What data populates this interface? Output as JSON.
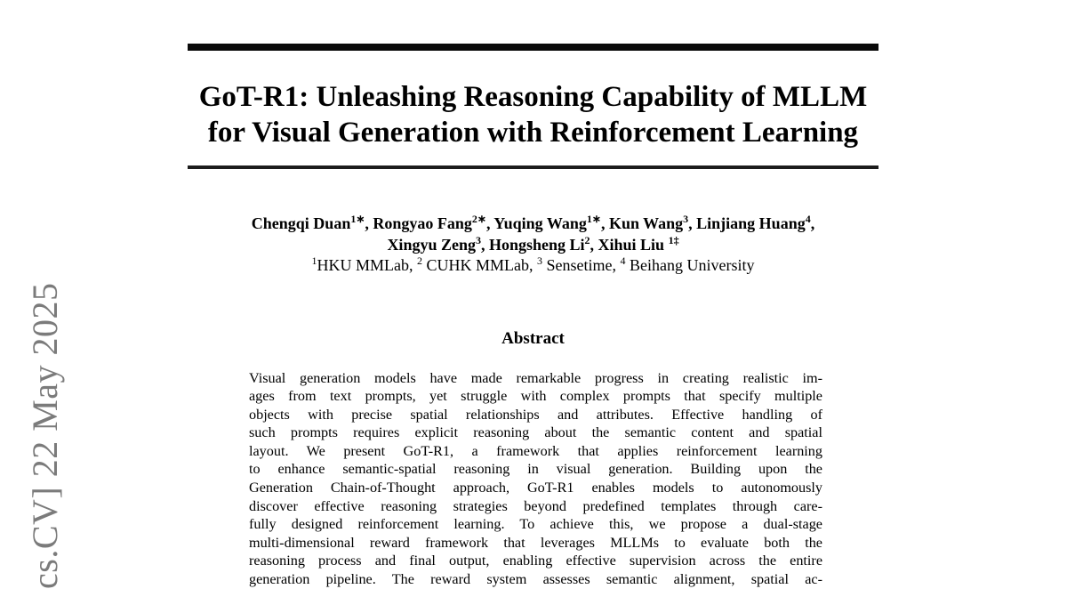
{
  "watermark": {
    "text": "cs.CV] 22 May 2025",
    "color": "#7b7b7b"
  },
  "paper": {
    "title_line1": "GoT-R1: Unleashing Reasoning Capability of MLLM",
    "title_line2": "for Visual Generation with Reinforcement Learning",
    "authors_line1_html": "Chengqi Duan<sup>1∗</sup>, Rongyao Fang<sup>2∗</sup>, Yuqing Wang<sup>1∗</sup>, Kun Wang<sup>3</sup>, Linjiang Huang<sup>4</sup>,",
    "authors_line2_html": "Xingyu Zeng<sup>3</sup>, Hongsheng Li<sup>2</sup>, Xihui Liu <sup>1‡</sup>",
    "affiliations_html": "<sup>1</sup>HKU MMLab, <sup>2</sup> CUHK MMLab, <sup>3</sup> Sensetime, <sup>4</sup> Beihang University",
    "abstract": {
      "heading": "Abstract",
      "lines": [
        "Visual generation models have made remarkable progress in creating realistic im-",
        "ages from text prompts, yet struggle with complex prompts that specify multiple",
        "objects with precise spatial relationships and attributes. Effective handling of",
        "such prompts requires explicit reasoning about the semantic content and spatial",
        "layout. We present GoT-R1, a framework that applies reinforcement learning",
        "to enhance semantic-spatial reasoning in visual generation. Building upon the",
        "Generation Chain-of-Thought approach, GoT-R1 enables models to autonomously",
        "discover effective reasoning strategies beyond predefined templates through care-",
        "fully designed reinforcement learning. To achieve this, we propose a dual-stage",
        "multi-dimensional reward framework that leverages MLLMs to evaluate both the",
        "reasoning process and final output, enabling effective supervision across the entire",
        "generation pipeline. The reward system assesses semantic alignment, spatial ac-"
      ]
    }
  }
}
